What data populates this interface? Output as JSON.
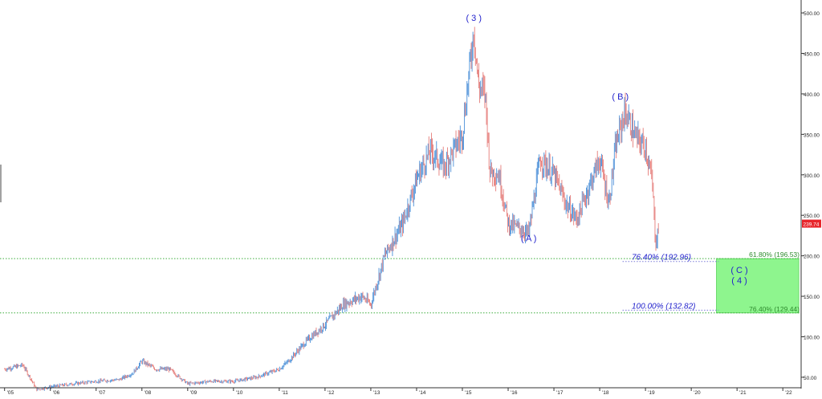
{
  "chart_data": {
    "type": "candlestick",
    "title": "",
    "xlabel": "",
    "ylabel": "",
    "x_ticks": [
      "'05",
      "'06",
      "'07",
      "'08",
      "'09",
      "'10",
      "'11",
      "'12",
      "'13",
      "'14",
      "'15",
      "'16",
      "'17",
      "'18",
      "'19",
      "'20",
      "'21",
      "'22"
    ],
    "y_ticks": [
      "50.00",
      "100.00",
      "150.00",
      "200.00",
      "250.00",
      "300.00",
      "350.00",
      "400.00",
      "450.00",
      "500.00"
    ],
    "ylim": [
      40,
      510
    ],
    "xlim": [
      2004.9,
      2022.4
    ],
    "grid": false,
    "colors": {
      "up": "#4a8fd8",
      "down": "#e57b78",
      "price_tag": "#e8252a",
      "wave_label": "#2222cc",
      "fib_ext": "#2222cc",
      "fib_ret": "#2e8b2e",
      "target_zone": "#8ef58e",
      "hline": "#3fae3f"
    },
    "series": [
      {
        "name": "",
        "x": [
          2005.0,
          2005.4,
          2005.7,
          2006.0,
          2006.5,
          2007.0,
          2007.5,
          2007.8,
          2008.0,
          2008.3,
          2008.6,
          2009.0,
          2009.5,
          2010.0,
          2010.5,
          2011.0,
          2011.2,
          2011.6,
          2012.0,
          2012.4,
          2012.8,
          2013.0,
          2013.3,
          2013.7,
          2014.0,
          2014.3,
          2014.6,
          2015.0,
          2015.25,
          2015.35,
          2015.5,
          2015.6,
          2015.8,
          2016.0,
          2016.2,
          2016.45,
          2016.7,
          2017.0,
          2017.3,
          2017.5,
          2017.8,
          2018.0,
          2018.2,
          2018.35,
          2018.55,
          2018.8,
          2019.0,
          2019.15,
          2019.22,
          2019.3
        ],
        "values": [
          60,
          65,
          35,
          38,
          42,
          45,
          47,
          55,
          70,
          60,
          60,
          42,
          45,
          45,
          50,
          60,
          70,
          95,
          115,
          140,
          150,
          140,
          200,
          240,
          295,
          330,
          310,
          350,
          480,
          410,
          400,
          305,
          300,
          240,
          235,
          228,
          320,
          300,
          260,
          245,
          290,
          320,
          265,
          335,
          378,
          345,
          335,
          290,
          215,
          240
        ]
      }
    ],
    "last_price": "239.74",
    "wave_labels": [
      {
        "text": "( 3 )",
        "x": 2015.25,
        "y": 490
      },
      {
        "text": "( A )",
        "x": 2016.45,
        "y": 218
      },
      {
        "text": "( B )",
        "x": 2018.45,
        "y": 393
      },
      {
        "text": "( C )",
        "x": 2021.05,
        "y": 179
      },
      {
        "text": "( 4 )",
        "x": 2021.05,
        "y": 166
      }
    ],
    "fib_levels": [
      {
        "label": "76.40% (192.96)",
        "value": 192.96,
        "kind": "ext"
      },
      {
        "label": "100.00% (132.82)",
        "value": 132.82,
        "kind": "ext"
      },
      {
        "label": "61.80% (196.53)",
        "value": 196.53,
        "kind": "ret"
      },
      {
        "label": "76.40% (129.44)",
        "value": 129.44,
        "kind": "ret"
      }
    ],
    "target_zone": {
      "x_start": 2020.55,
      "x_end": 2022.35,
      "y_low": 129.44,
      "y_high": 196.53
    }
  }
}
